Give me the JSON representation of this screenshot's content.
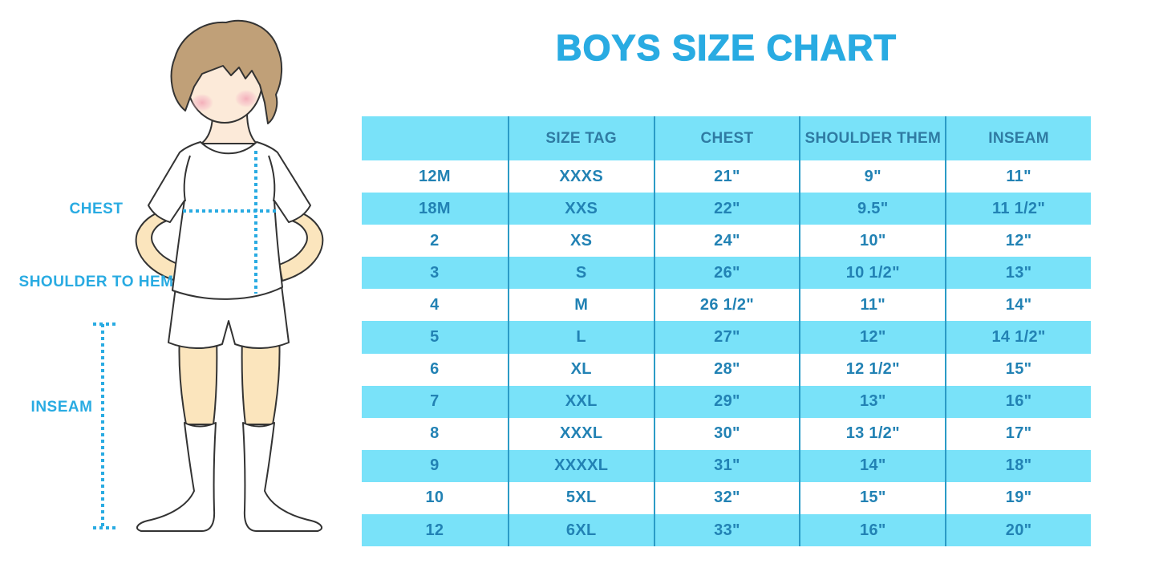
{
  "page": {
    "title": "BOYS SIZE CHART"
  },
  "diagram_labels": {
    "chest": "CHEST",
    "shoulder_to_hem": "SHOULDER TO HEM",
    "inseam": "INSEAM"
  },
  "colors": {
    "accent": "#29ABE2",
    "row_highlight": "#79E2F9",
    "table_divider": "#2B9BC6",
    "table_text": "#2282B4",
    "header_text": "#2F7BA3"
  },
  "chart_data": {
    "type": "table",
    "title": "BOYS SIZE CHART",
    "columns": [
      "",
      "SIZE TAG",
      "CHEST",
      "SHOULDER THEM",
      "INSEAM"
    ],
    "rows": [
      [
        "12M",
        "XXXS",
        "21\"",
        "9\"",
        "11\""
      ],
      [
        "18M",
        "XXS",
        "22\"",
        "9.5\"",
        "11 1/2\""
      ],
      [
        "2",
        "XS",
        "24\"",
        "10\"",
        "12\""
      ],
      [
        "3",
        "S",
        "26\"",
        "10 1/2\"",
        "13\""
      ],
      [
        "4",
        "M",
        "26 1/2\"",
        "11\"",
        "14\""
      ],
      [
        "5",
        "L",
        "27\"",
        "12\"",
        "14 1/2\""
      ],
      [
        "6",
        "XL",
        "28\"",
        "12 1/2\"",
        "15\""
      ],
      [
        "7",
        "XXL",
        "29\"",
        "13\"",
        "16\""
      ],
      [
        "8",
        "XXXL",
        "30\"",
        "13 1/2\"",
        "17\""
      ],
      [
        "9",
        "XXXXL",
        "31\"",
        "14\"",
        "18\""
      ],
      [
        "10",
        "5XL",
        "32\"",
        "15\"",
        "19\""
      ],
      [
        "12",
        "6XL",
        "33\"",
        "16\"",
        "20\""
      ]
    ],
    "layout": {
      "highlight_pattern": "header row and every second data row filled light cyan",
      "grid": "vertical column dividers only"
    }
  }
}
